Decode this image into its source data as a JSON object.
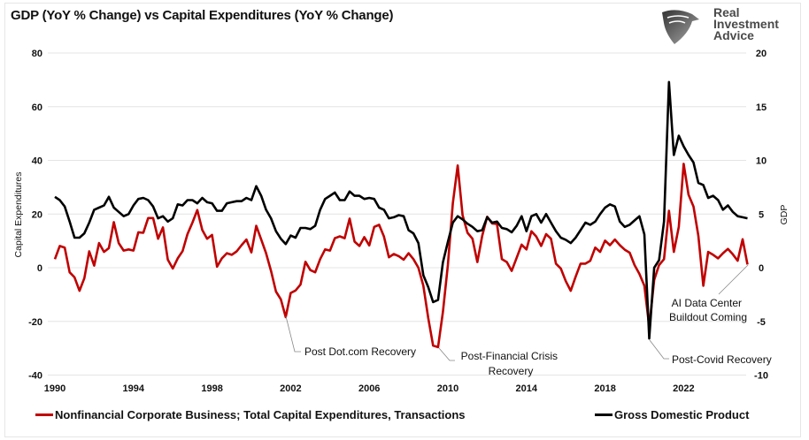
{
  "chart_data": {
    "type": "line",
    "title": "GDP (YoY % Change) vs Capital Expenditures (YoY % Change)",
    "ylabel": "Capital Expenditures",
    "y2label": "GDP",
    "x_ticks": [
      "1990",
      "1994",
      "1998",
      "2002",
      "2006",
      "2010",
      "2014",
      "2018",
      "2022"
    ],
    "xlim": [
      1990,
      2025.5
    ],
    "ylim": [
      -40,
      80
    ],
    "y_ticks": [
      "80",
      "60",
      "40",
      "20",
      "0",
      "-20",
      "-40"
    ],
    "y2lim": [
      -10,
      20
    ],
    "y2_ticks": [
      "20",
      "15",
      "10",
      "5",
      "0",
      "-5",
      "-10"
    ],
    "grid": true,
    "legend_position": "bottom",
    "start": "1990-Q1",
    "frequency": "quarterly",
    "series": [
      {
        "name": "Nonfinancial Corporate Business; Total Capital Expenditures, Transactions",
        "axis": "left",
        "color": "#c00000",
        "values": [
          3.2,
          8.1,
          7.5,
          -1.7,
          -3.6,
          -8.6,
          -3.9,
          6.1,
          0.8,
          9.2,
          5.9,
          7.3,
          17,
          9.2,
          6.4,
          6.8,
          6.4,
          13.2,
          13,
          18.5,
          18.5,
          10.8,
          15,
          3,
          -0.3,
          3.5,
          6.2,
          12.5,
          16.8,
          21.5,
          14.1,
          10.8,
          12.2,
          0.4,
          3.5,
          5.4,
          4.8,
          6.1,
          8.4,
          10.5,
          5.7,
          15.6,
          10.5,
          5.4,
          -1.2,
          -8.9,
          -11.8,
          -18.4,
          -9.4,
          -8.5,
          -6.3,
          2.2,
          -0.9,
          -1.7,
          3.2,
          6.8,
          6.4,
          11,
          11.7,
          11,
          18.3,
          9.7,
          8.1,
          11.4,
          8.3,
          15.2,
          16,
          11.6,
          3.9,
          5.1,
          4.3,
          3,
          5.4,
          3.2,
          0,
          -6.7,
          -18.7,
          -29,
          -29.6,
          -16.5,
          1,
          24,
          38.1,
          19.6,
          13,
          10.8,
          2.1,
          11.9,
          19,
          16.5,
          16.3,
          3.2,
          2.1,
          -1.2,
          3.7,
          8.6,
          6.8,
          13.6,
          11.6,
          8.1,
          12.5,
          10.8,
          1.5,
          -0.3,
          -5,
          -8.6,
          -3.4,
          1.5,
          1.5,
          2.6,
          7.5,
          5.9,
          10.1,
          8.4,
          10.5,
          8.4,
          6.7,
          5.6,
          1,
          -2.3,
          -6.7,
          -22,
          -4.5,
          1,
          3.2,
          21.2,
          5.9,
          15.2,
          38.7,
          27.2,
          22.8,
          11.9,
          -6.7,
          5.9,
          4.8,
          3.5,
          5.4,
          7,
          5,
          2.6,
          10.6,
          1.2
        ]
      },
      {
        "name": "Gross Domestic Product",
        "axis": "right",
        "color": "#000000",
        "values": [
          6.6,
          6.3,
          5.7,
          4.3,
          2.8,
          2.8,
          3.2,
          4.2,
          5.4,
          5.6,
          5.8,
          6.6,
          5.6,
          5.2,
          4.8,
          5,
          5.8,
          6.4,
          6.5,
          6.3,
          5.7,
          4.6,
          4.8,
          4.3,
          4.6,
          5.9,
          5.8,
          6.3,
          6.3,
          6,
          6.5,
          6.1,
          6,
          5.3,
          5.3,
          6,
          6.1,
          6.2,
          6.2,
          6.5,
          6.3,
          7.6,
          6.7,
          5.4,
          4.6,
          3.4,
          2.7,
          2.2,
          3,
          2.8,
          3.7,
          3.7,
          3.6,
          3.9,
          5.4,
          6.4,
          6.7,
          7,
          6.3,
          6.3,
          7.1,
          6.7,
          6.7,
          6.4,
          6.5,
          6.4,
          5.6,
          5.4,
          4.6,
          4.7,
          4.9,
          4.8,
          3.5,
          3.2,
          2.3,
          -0.7,
          -1.8,
          -3.2,
          -3,
          0.5,
          2.4,
          4.2,
          4.8,
          4.5,
          4.1,
          3.8,
          3.4,
          3.5,
          4.7,
          4.2,
          4.3,
          3.7,
          3.6,
          3.3,
          3.9,
          4.8,
          3.4,
          4.8,
          5,
          4.2,
          5,
          4.2,
          3.4,
          2.8,
          2.6,
          2.3,
          2.8,
          3.5,
          4.2,
          4,
          4.3,
          5,
          5.6,
          5.9,
          5.7,
          4.3,
          3.8,
          4,
          4.4,
          4.8,
          3.1,
          -6.6,
          0,
          0.7,
          4.3,
          17.3,
          10.5,
          12.3,
          11.3,
          10.5,
          9.8,
          7.9,
          7.7,
          6.5,
          6.7,
          6.3,
          5.4,
          5.8,
          5.2,
          4.8,
          4.7,
          4.6
        ]
      }
    ],
    "annotations": [
      {
        "text": "Post Dot.com Recovery",
        "date": "2001-Q4"
      },
      {
        "text": "Post-Financial Crisis Recovery",
        "lines": [
          "Post-Financial Crisis",
          "Recovery"
        ],
        "date": "2009-Q2"
      },
      {
        "text": "Post-Covid Recovery",
        "date": "2020-Q2"
      },
      {
        "text": "AI Data Center Buildout Coming",
        "lines": [
          "AI Data Center",
          "Buildout Coming"
        ],
        "date": "2025-Q2"
      }
    ]
  },
  "logo": {
    "lines": [
      "Real",
      "Investment",
      "Advice"
    ],
    "icon": "eagle-shield-icon"
  }
}
